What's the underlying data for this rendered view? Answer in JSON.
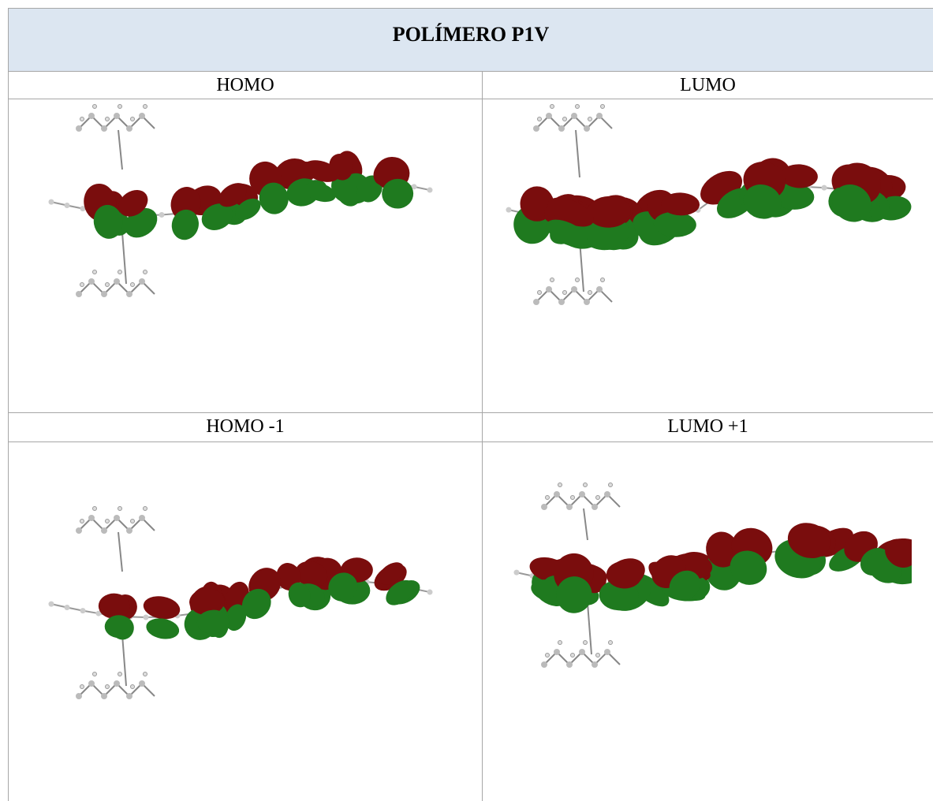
{
  "table": {
    "title": "POLÍMERO P1V",
    "rows": [
      [
        "HOMO",
        "LUMO"
      ],
      [
        "HOMO -1",
        "LUMO +1"
      ]
    ]
  }
}
